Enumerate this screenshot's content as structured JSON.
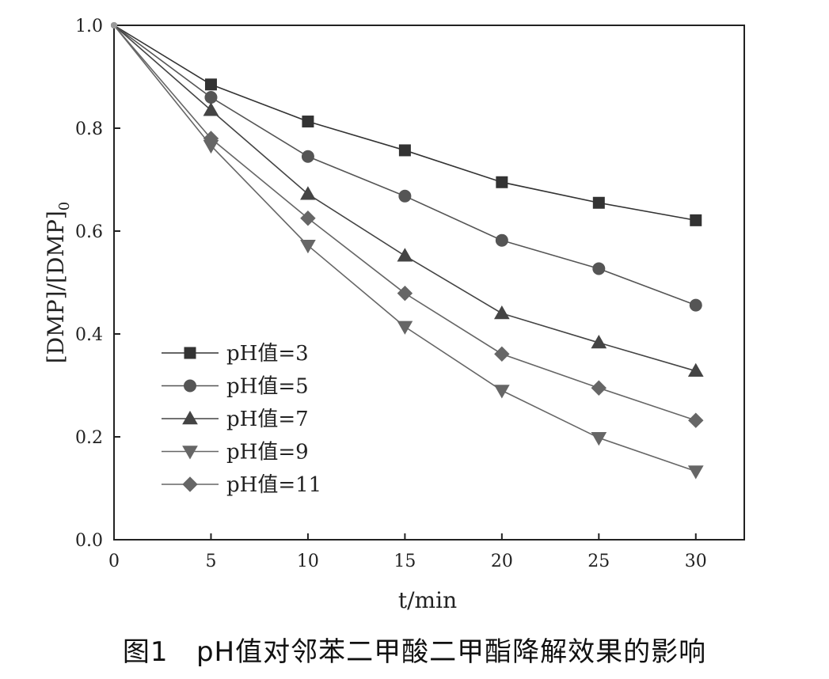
{
  "caption": {
    "figure_number": "图1",
    "text": "pH值对邻苯二甲酸二甲酯降解效果的影响"
  },
  "chart_data": {
    "type": "line",
    "title": "",
    "xlabel": "t/min",
    "ylabel_main": "[DMP]/[DMP]",
    "ylabel_sub": "0",
    "xlim": [
      0,
      32.5
    ],
    "ylim": [
      0,
      1.0
    ],
    "xticks": [
      0,
      5,
      10,
      15,
      20,
      25,
      30
    ],
    "yticks": [
      "0.0",
      "0.2",
      "0.4",
      "0.6",
      "0.8",
      "1.0"
    ],
    "grid": false,
    "legend_position": "bottom-left",
    "x": [
      0,
      5,
      10,
      15,
      20,
      25,
      30
    ],
    "series": [
      {
        "name": "pH值=3",
        "marker": "square",
        "color": "#333333",
        "values": [
          1.0,
          0.885,
          0.813,
          0.757,
          0.695,
          0.655,
          0.621
        ]
      },
      {
        "name": "pH值=5",
        "marker": "circle",
        "color": "#555555",
        "values": [
          1.0,
          0.86,
          0.745,
          0.668,
          0.582,
          0.527,
          0.456
        ]
      },
      {
        "name": "pH值=7",
        "marker": "triangle-up",
        "color": "#444444",
        "values": [
          1.0,
          0.835,
          0.672,
          0.552,
          0.44,
          0.383,
          0.328
        ]
      },
      {
        "name": "pH值=9",
        "marker": "triangle-down",
        "color": "#666666",
        "values": [
          1.0,
          0.766,
          0.572,
          0.414,
          0.29,
          0.198,
          0.133
        ]
      },
      {
        "name": "pH值=11",
        "marker": "diamond",
        "color": "#666666",
        "values": [
          1.0,
          0.78,
          0.625,
          0.479,
          0.361,
          0.295,
          0.232
        ]
      }
    ]
  }
}
